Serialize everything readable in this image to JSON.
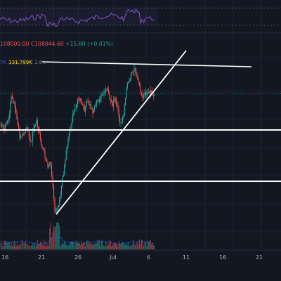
{
  "ohlc": {
    "o": "108000.00",
    "c": "C108044.60",
    "chg": "+15.80 (+0.01%)"
  },
  "volume": {
    "ma_label": "7K",
    "vol_value": "131.799K",
    "vol_extra": "2.6..."
  },
  "colors": {
    "bg": "#131722",
    "up": "#26a69a",
    "down": "#ef5350",
    "rsi": "#7e57c2",
    "trendline": "#ffffff"
  },
  "chart_data": {
    "type": "candlestick",
    "x_tick_labels": [
      "16",
      "21",
      "26",
      "Jul",
      "6",
      "11",
      "16",
      "21"
    ],
    "annotations": [
      "support line",
      "support line",
      "rising trendline",
      "resistance line"
    ]
  }
}
